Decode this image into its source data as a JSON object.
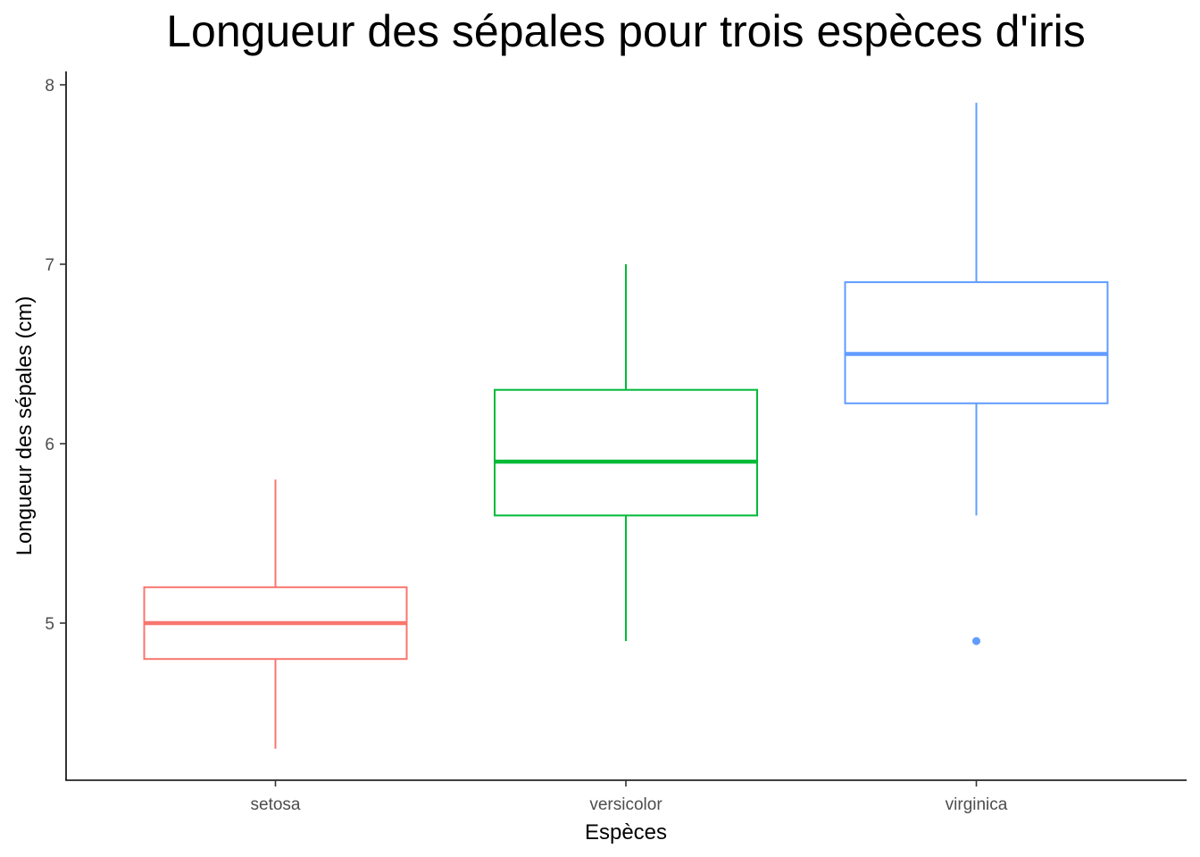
{
  "chart_data": {
    "type": "boxplot",
    "title": "Longueur des sépales pour trois espèces d'iris",
    "xlabel": "Espèces",
    "ylabel": "Longueur des sépales (cm)",
    "ylim": [
      4.2,
      8.08
    ],
    "yticks": [
      5,
      6,
      7,
      8
    ],
    "grid": false,
    "legend": "none",
    "categories": [
      "setosa",
      "versicolor",
      "virginica"
    ],
    "series": [
      {
        "category": "setosa",
        "color": "#F8766D",
        "min": 4.3,
        "q1": 4.8,
        "median": 5.0,
        "q3": 5.2,
        "max": 5.8,
        "outliers": []
      },
      {
        "category": "versicolor",
        "color": "#00BA38",
        "min": 4.9,
        "q1": 5.6,
        "median": 5.9,
        "q3": 6.3,
        "max": 7.0,
        "outliers": []
      },
      {
        "category": "virginica",
        "color": "#619CFF",
        "min": 5.6,
        "q1": 6.225,
        "median": 6.5,
        "q3": 6.9,
        "max": 7.9,
        "outliers": [
          4.9
        ]
      }
    ]
  }
}
